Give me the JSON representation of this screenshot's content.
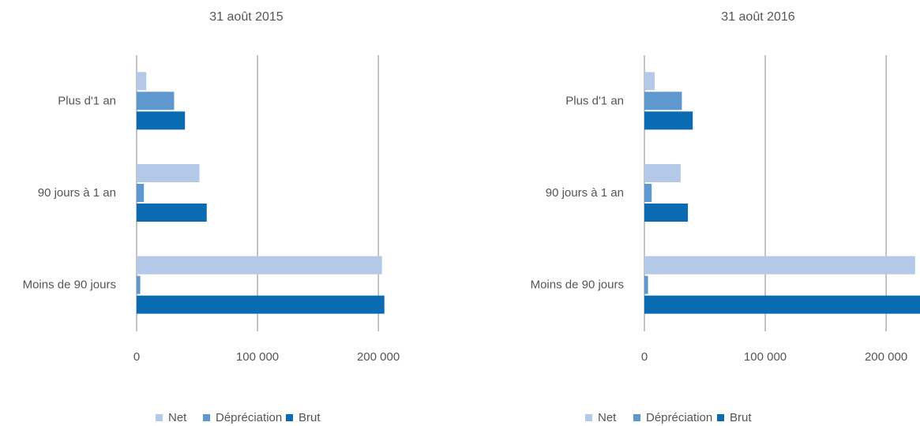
{
  "chart_data": [
    {
      "type": "barh",
      "title": "31 août 2015",
      "categories": [
        "Plus d'1 an",
        "90 jours à 1 an",
        "Moins de 90 jours"
      ],
      "series": [
        {
          "name": "Net",
          "color": "#b4c9e7",
          "values": [
            8000,
            52000,
            203000
          ]
        },
        {
          "name": "Dépréciation",
          "color": "#5f97cf",
          "values": [
            31000,
            6000,
            3000
          ]
        },
        {
          "name": "Brut",
          "color": "#0a6bb3",
          "values": [
            40000,
            58000,
            205000
          ]
        }
      ],
      "xlim": [
        0,
        230000
      ],
      "xticks": [
        0,
        {
          "value": 100000,
          "label": "100 000"
        },
        {
          "value": 200000,
          "label": "200 000"
        }
      ],
      "grid": true,
      "legend": "bottom"
    },
    {
      "type": "barh",
      "title": "31 août 2016",
      "categories": [
        "Plus d'1 an",
        "90 jours à 1 an",
        "Moins de 90 jours"
      ],
      "series": [
        {
          "name": "Net",
          "color": "#b4c9e7",
          "values": [
            8500,
            30000,
            224000
          ]
        },
        {
          "name": "Dépréciation",
          "color": "#5f97cf",
          "values": [
            31000,
            6000,
            3000
          ]
        },
        {
          "name": "Brut",
          "color": "#0a6bb3",
          "values": [
            40000,
            36000,
            230000
          ]
        }
      ],
      "xlim": [
        0,
        230000
      ],
      "xticks": [
        0,
        {
          "value": 100000,
          "label": "100 000"
        },
        {
          "value": 200000,
          "label": "200 000"
        }
      ],
      "grid": true,
      "legend": "bottom"
    }
  ]
}
